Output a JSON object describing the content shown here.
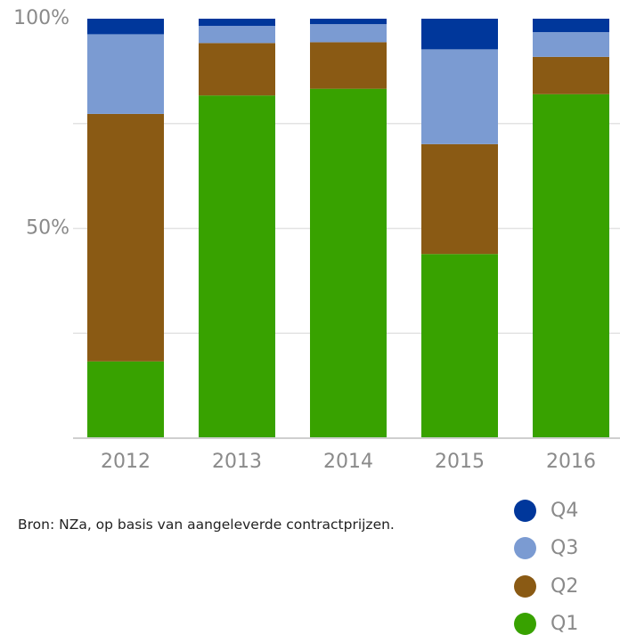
{
  "chart_data": {
    "type": "bar",
    "stacked": true,
    "categories": [
      "2012",
      "2013",
      "2014",
      "2015",
      "2016"
    ],
    "series": [
      {
        "name": "Q1",
        "color": "#38a200",
        "values": [
          18.3,
          81.7,
          83.3,
          43.9,
          82.0
        ]
      },
      {
        "name": "Q2",
        "color": "#8a5a14",
        "values": [
          59.0,
          12.5,
          11.1,
          26.2,
          8.9
        ]
      },
      {
        "name": "Q3",
        "color": "#7b9bd2",
        "values": [
          19.0,
          4.1,
          4.3,
          22.6,
          5.9
        ]
      },
      {
        "name": "Q4",
        "color": "#00379b",
        "values": [
          3.7,
          1.7,
          1.3,
          7.3,
          3.2
        ]
      }
    ],
    "yticks": [
      {
        "value": 100,
        "label": "100%"
      },
      {
        "value": 50,
        "label": "50%"
      }
    ],
    "ylim": [
      0,
      100
    ],
    "grid": true,
    "legend_position": "bottom-right"
  },
  "source_note": "Bron: NZa, op basis van aangeleverde contractprijzen."
}
